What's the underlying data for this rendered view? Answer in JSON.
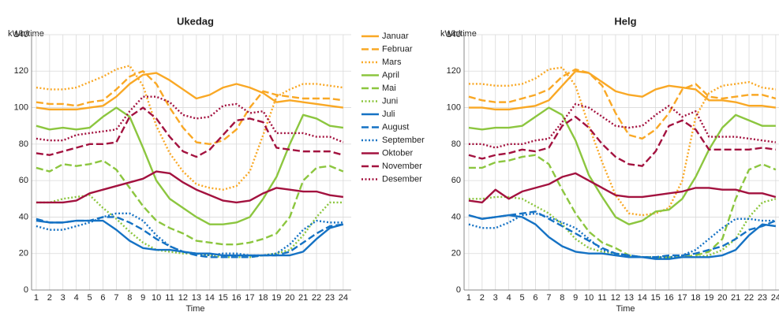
{
  "chart_data": [
    {
      "type": "line",
      "title": "Ukedag",
      "ylabel": "kWh/time",
      "xlabel": "Time",
      "x": [
        1,
        2,
        3,
        4,
        5,
        6,
        7,
        8,
        9,
        10,
        11,
        12,
        13,
        14,
        15,
        16,
        17,
        18,
        19,
        20,
        21,
        22,
        23,
        24
      ],
      "xlim": [
        0.65,
        24.6
      ],
      "ylim": [
        0,
        140
      ],
      "yticks": [
        0,
        20,
        40,
        60,
        80,
        100,
        120,
        140
      ],
      "grid": true,
      "series": [
        {
          "name": "Januar",
          "color": "#f9a825",
          "dash": "solid",
          "values": [
            100,
            99,
            99,
            99,
            100,
            101,
            106,
            113,
            118,
            119,
            115,
            110,
            105,
            107,
            111,
            113,
            111,
            108,
            103,
            104,
            103,
            102,
            101,
            100
          ]
        },
        {
          "name": "Februar",
          "color": "#f9a825",
          "dash": "dashed",
          "values": [
            103,
            102,
            102,
            101,
            103,
            104,
            110,
            117,
            120,
            113,
            100,
            89,
            81,
            80,
            82,
            88,
            100,
            109,
            107,
            106,
            105,
            105,
            105,
            104
          ]
        },
        {
          "name": "Mars",
          "color": "#f9a825",
          "dash": "dotted",
          "values": [
            111,
            110,
            110,
            111,
            114,
            117,
            121,
            123,
            112,
            90,
            75,
            65,
            58,
            56,
            55,
            57,
            65,
            85,
            106,
            110,
            113,
            113,
            112,
            111
          ]
        },
        {
          "name": "April",
          "color": "#8cc63f",
          "dash": "solid",
          "values": [
            90,
            88,
            89,
            88,
            89,
            95,
            100,
            95,
            78,
            60,
            50,
            45,
            40,
            36,
            36,
            37,
            40,
            50,
            62,
            80,
            96,
            94,
            90,
            89
          ]
        },
        {
          "name": "Mai",
          "color": "#8cc63f",
          "dash": "dashed",
          "values": [
            67,
            65,
            69,
            68,
            69,
            71,
            66,
            56,
            46,
            38,
            34,
            31,
            27,
            26,
            25,
            25,
            26,
            28,
            31,
            40,
            60,
            67,
            68,
            65
          ]
        },
        {
          "name": "Juni",
          "color": "#8cc63f",
          "dash": "dotted",
          "values": [
            48,
            48,
            50,
            51,
            52,
            45,
            39,
            32,
            26,
            22,
            21,
            20,
            20,
            19,
            18,
            18,
            18,
            19,
            20,
            22,
            30,
            40,
            48,
            48
          ]
        },
        {
          "name": "Juli",
          "color": "#1572c4",
          "dash": "solid",
          "values": [
            38,
            37,
            37,
            38,
            38,
            38,
            33,
            27,
            23,
            22,
            22,
            21,
            20,
            20,
            19,
            19,
            19,
            19,
            19,
            19,
            21,
            28,
            34,
            36
          ]
        },
        {
          "name": "August",
          "color": "#1572c4",
          "dash": "dashed",
          "values": [
            39,
            37,
            37,
            38,
            38,
            40,
            40,
            37,
            33,
            28,
            24,
            21,
            19,
            18,
            18,
            18,
            18,
            19,
            19,
            21,
            26,
            31,
            35,
            36
          ]
        },
        {
          "name": "September",
          "color": "#1572c4",
          "dash": "dotted",
          "values": [
            35,
            33,
            33,
            35,
            37,
            40,
            42,
            42,
            38,
            30,
            24,
            21,
            20,
            19,
            20,
            20,
            19,
            19,
            20,
            25,
            33,
            38,
            37,
            37
          ]
        },
        {
          "name": "Oktober",
          "color": "#a3123f",
          "dash": "solid",
          "values": [
            48,
            48,
            48,
            49,
            53,
            55,
            57,
            59,
            61,
            65,
            64,
            59,
            55,
            52,
            49,
            48,
            49,
            53,
            56,
            55,
            54,
            54,
            52,
            51
          ]
        },
        {
          "name": "November",
          "color": "#a3123f",
          "dash": "dashed",
          "values": [
            75,
            74,
            76,
            78,
            80,
            80,
            81,
            95,
            100,
            94,
            84,
            76,
            73,
            77,
            85,
            93,
            94,
            92,
            78,
            77,
            76,
            76,
            76,
            74
          ]
        },
        {
          "name": "Desember",
          "color": "#a3123f",
          "dash": "dotted",
          "values": [
            83,
            82,
            82,
            85,
            86,
            87,
            88,
            98,
            106,
            106,
            103,
            96,
            94,
            95,
            101,
            102,
            97,
            98,
            86,
            86,
            86,
            84,
            84,
            81
          ]
        }
      ]
    },
    {
      "type": "line",
      "title": "Helg",
      "ylabel": "kWh/time",
      "xlabel": "Time",
      "x": [
        1,
        2,
        3,
        4,
        5,
        6,
        7,
        8,
        9,
        10,
        11,
        12,
        13,
        14,
        15,
        16,
        17,
        18,
        19,
        20,
        21,
        22,
        23,
        24
      ],
      "xlim": [
        0.65,
        24.6
      ],
      "ylim": [
        0,
        140
      ],
      "yticks": [
        0,
        20,
        40,
        60,
        80,
        100,
        120,
        140
      ],
      "grid": true,
      "series": [
        {
          "color": "#f9a825",
          "dash": "solid",
          "values": [
            100,
            100,
            99,
            99,
            100,
            101,
            104,
            112,
            120,
            119,
            114,
            109,
            107,
            106,
            110,
            112,
            111,
            110,
            104,
            104,
            103,
            101,
            101,
            100
          ]
        },
        {
          "color": "#f9a825",
          "dash": "dashed",
          "values": [
            106,
            104,
            103,
            103,
            105,
            107,
            110,
            117,
            121,
            119,
            112,
            97,
            85,
            83,
            88,
            97,
            110,
            113,
            106,
            105,
            106,
            107,
            107,
            105
          ]
        },
        {
          "color": "#f9a825",
          "dash": "dotted",
          "values": [
            113,
            113,
            112,
            112,
            113,
            116,
            121,
            122,
            112,
            90,
            70,
            52,
            42,
            41,
            42,
            45,
            60,
            95,
            108,
            112,
            113,
            114,
            111,
            110
          ]
        },
        {
          "color": "#8cc63f",
          "dash": "solid",
          "values": [
            89,
            88,
            89,
            89,
            90,
            95,
            100,
            96,
            82,
            63,
            51,
            40,
            36,
            38,
            43,
            44,
            50,
            62,
            77,
            89,
            96,
            93,
            90,
            90
          ]
        },
        {
          "color": "#8cc63f",
          "dash": "dashed",
          "values": [
            67,
            67,
            70,
            71,
            73,
            74,
            69,
            55,
            42,
            32,
            26,
            23,
            19,
            18,
            18,
            18,
            18,
            19,
            21,
            28,
            50,
            66,
            69,
            66
          ]
        },
        {
          "color": "#8cc63f",
          "dash": "dotted",
          "values": [
            50,
            50,
            51,
            51,
            50,
            46,
            42,
            36,
            28,
            23,
            21,
            20,
            19,
            18,
            18,
            18,
            18,
            18,
            19,
            22,
            28,
            40,
            48,
            50
          ]
        },
        {
          "color": "#1572c4",
          "dash": "solid",
          "values": [
            41,
            39,
            40,
            41,
            40,
            36,
            29,
            24,
            21,
            20,
            20,
            19,
            18,
            18,
            17,
            17,
            18,
            18,
            18,
            19,
            22,
            30,
            36,
            35
          ]
        },
        {
          "color": "#1572c4",
          "dash": "dashed",
          "values": [
            41,
            39,
            40,
            41,
            42,
            43,
            39,
            35,
            31,
            27,
            23,
            20,
            19,
            18,
            18,
            19,
            19,
            20,
            22,
            24,
            28,
            33,
            35,
            38
          ]
        },
        {
          "color": "#1572c4",
          "dash": "dotted",
          "values": [
            36,
            34,
            34,
            37,
            41,
            42,
            40,
            37,
            34,
            28,
            22,
            20,
            19,
            18,
            18,
            18,
            19,
            22,
            28,
            34,
            39,
            39,
            38,
            38
          ]
        },
        {
          "color": "#a3123f",
          "dash": "solid",
          "values": [
            49,
            48,
            55,
            50,
            54,
            56,
            58,
            62,
            64,
            60,
            56,
            52,
            51,
            51,
            52,
            53,
            54,
            56,
            56,
            55,
            55,
            53,
            53,
            51
          ]
        },
        {
          "color": "#a3123f",
          "dash": "dashed",
          "values": [
            74,
            72,
            74,
            75,
            77,
            76,
            78,
            90,
            95,
            89,
            80,
            73,
            69,
            68,
            76,
            90,
            93,
            88,
            77,
            77,
            77,
            77,
            78,
            77
          ]
        },
        {
          "color": "#a3123f",
          "dash": "dotted",
          "values": [
            80,
            80,
            78,
            80,
            80,
            82,
            83,
            92,
            102,
            100,
            95,
            90,
            89,
            90,
            96,
            101,
            95,
            98,
            84,
            84,
            84,
            83,
            82,
            81
          ]
        }
      ]
    }
  ]
}
